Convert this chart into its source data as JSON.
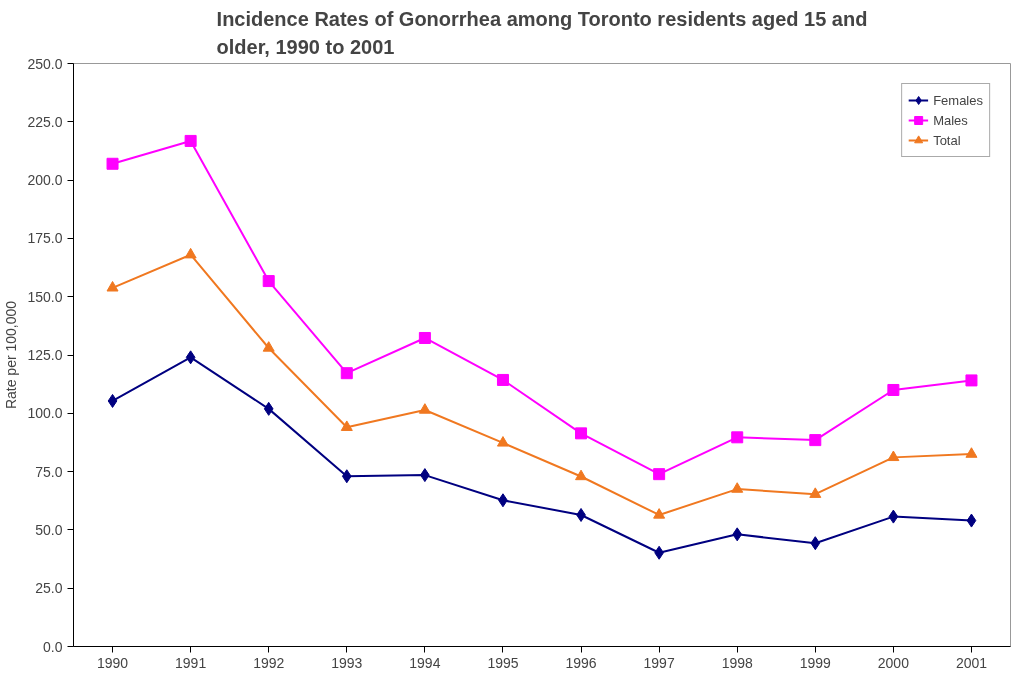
{
  "chart_data": {
    "type": "line",
    "title": "Incidence Rates of Gonorrhea among Toronto residents aged 15 and older, 1990 to 2001",
    "ylabel": "Rate per 100,000",
    "categories": [
      "1990",
      "1991",
      "1992",
      "1993",
      "1994",
      "1995",
      "1996",
      "1997",
      "1998",
      "1999",
      "2000",
      "2001"
    ],
    "series": [
      {
        "name": "Females",
        "color": "#000080",
        "marker": "diamond",
        "values": [
          105.3,
          124,
          101.9,
          73,
          73.5,
          62.7,
          56.4,
          40.2,
          48.1,
          44.3,
          55.7,
          54
        ]
      },
      {
        "name": "Males",
        "color": "#ff00ff",
        "marker": "square",
        "values": [
          207,
          216.8,
          156.7,
          117.2,
          132.3,
          114.3,
          91.4,
          73.9,
          89.7,
          88.5,
          110,
          114.1
        ]
      },
      {
        "name": "Total",
        "color": "#f07820",
        "marker": "triangle",
        "values": [
          153.8,
          168,
          128,
          94,
          101.4,
          87.3,
          72.9,
          56.4,
          67.5,
          65.3,
          81.1,
          82.5
        ]
      }
    ],
    "ylim": [
      0,
      250
    ],
    "yticks": [
      {
        "value": 0,
        "label": "0.0"
      },
      {
        "value": 25,
        "label": "25.0"
      },
      {
        "value": 50,
        "label": "50.0"
      },
      {
        "value": 75,
        "label": "75.0"
      },
      {
        "value": 100,
        "label": "100.0"
      },
      {
        "value": 125,
        "label": "125.0"
      },
      {
        "value": 150,
        "label": "150.0"
      },
      {
        "value": 175,
        "label": "175.0"
      },
      {
        "value": 200,
        "label": "200.0"
      },
      {
        "value": 225,
        "label": "225.0"
      },
      {
        "value": 250,
        "label": "250.0"
      }
    ],
    "grid": false,
    "legend": "top right",
    "line_style": "solid"
  }
}
